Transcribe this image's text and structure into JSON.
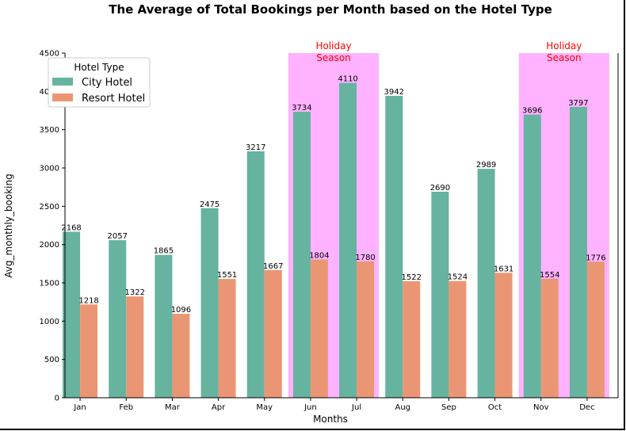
{
  "chart_data": {
    "type": "bar",
    "title": "The Average of Total Bookings per Month based on the Hotel Type",
    "xlabel": "Months",
    "ylabel": "Avg_monthly_booking",
    "categories": [
      "Jan",
      "Feb",
      "Mar",
      "Apr",
      "May",
      "Jun",
      "Jul",
      "Aug",
      "Sep",
      "Oct",
      "Nov",
      "Dec"
    ],
    "series": [
      {
        "name": "City Hotel",
        "color": "#66b3a0",
        "values": [
          2168,
          2057,
          1865,
          2475,
          3217,
          3734,
          4110,
          3942,
          2690,
          2989,
          3696,
          3797
        ]
      },
      {
        "name": "Resort Hotel",
        "color": "#ea9674",
        "values": [
          1218,
          1322,
          1096,
          1551,
          1667,
          1804,
          1780,
          1522,
          1524,
          1631,
          1554,
          1776
        ]
      }
    ],
    "ylim": [
      0,
      4500
    ],
    "yticks": [
      "0",
      "500",
      "1000",
      "1500",
      "2000",
      "2500",
      "3000",
      "3500",
      "4000",
      "4500"
    ],
    "legend": {
      "title": "Hotel Type",
      "position": "top-left"
    },
    "annotations": [
      {
        "text_line1": "Holiday",
        "text_line2": "Season",
        "range": [
          "Jun",
          "Jul"
        ],
        "color": "#ff00ff"
      },
      {
        "text_line1": "Holiday",
        "text_line2": "Season",
        "range": [
          "Nov",
          "Dec"
        ],
        "color": "#ff00ff"
      }
    ],
    "grid": false
  }
}
